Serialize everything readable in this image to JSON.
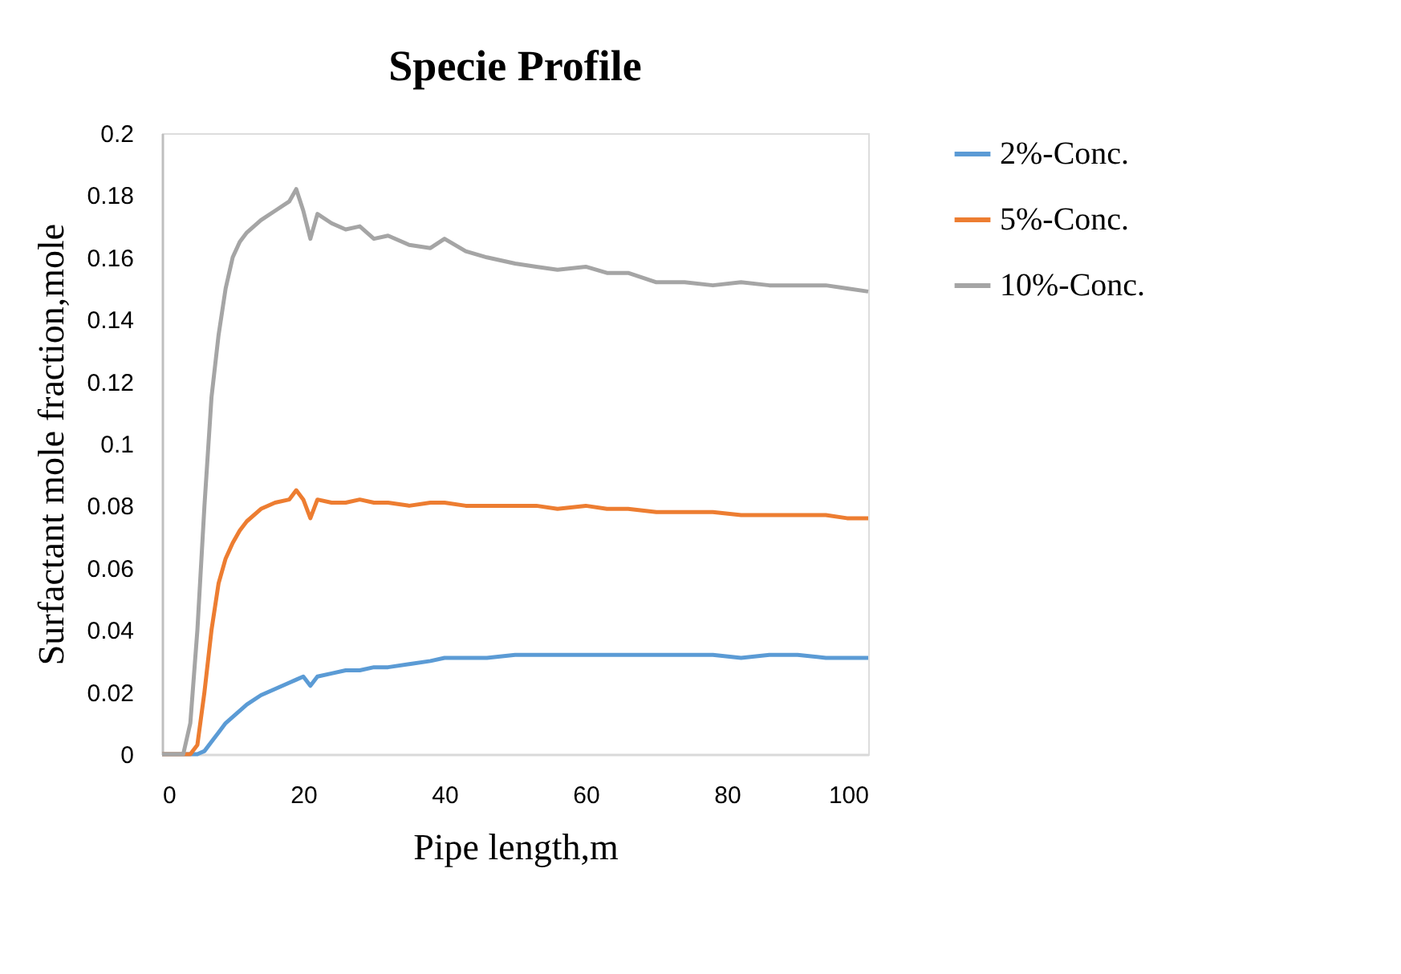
{
  "chart_data": {
    "type": "line",
    "title": "Specie Profile",
    "xlabel": "Pipe length,m",
    "ylabel": "Surfactant mole fraction,mole",
    "x": [
      0,
      2,
      3,
      4,
      5,
      6,
      7,
      8,
      9,
      10,
      11,
      12,
      14,
      16,
      18,
      19,
      20,
      21,
      22,
      24,
      26,
      28,
      30,
      32,
      35,
      38,
      40,
      43,
      46,
      50,
      53,
      56,
      60,
      63,
      66,
      70,
      74,
      78,
      82,
      86,
      90,
      94,
      97,
      100
    ],
    "series": [
      {
        "name": "2%-Conc.",
        "color": "#5b9bd5",
        "values": [
          0,
          0,
          0,
          0,
          0,
          0.001,
          0.004,
          0.007,
          0.01,
          0.012,
          0.014,
          0.016,
          0.019,
          0.021,
          0.023,
          0.024,
          0.025,
          0.022,
          0.025,
          0.026,
          0.027,
          0.027,
          0.028,
          0.028,
          0.029,
          0.03,
          0.031,
          0.031,
          0.031,
          0.032,
          0.032,
          0.032,
          0.032,
          0.032,
          0.032,
          0.032,
          0.032,
          0.032,
          0.031,
          0.032,
          0.032,
          0.031,
          0.031,
          0.031
        ]
      },
      {
        "name": "5%-Conc.",
        "color": "#ed7d31",
        "values": [
          0,
          0,
          0,
          0,
          0.003,
          0.02,
          0.04,
          0.055,
          0.063,
          0.068,
          0.072,
          0.075,
          0.079,
          0.081,
          0.082,
          0.085,
          0.082,
          0.076,
          0.082,
          0.081,
          0.081,
          0.082,
          0.081,
          0.081,
          0.08,
          0.081,
          0.081,
          0.08,
          0.08,
          0.08,
          0.08,
          0.079,
          0.08,
          0.079,
          0.079,
          0.078,
          0.078,
          0.078,
          0.077,
          0.077,
          0.077,
          0.077,
          0.076,
          0.076
        ]
      },
      {
        "name": "10%-Conc.",
        "color": "#a5a5a5",
        "values": [
          0,
          0,
          0,
          0.01,
          0.04,
          0.08,
          0.115,
          0.135,
          0.15,
          0.16,
          0.165,
          0.168,
          0.172,
          0.175,
          0.178,
          0.182,
          0.175,
          0.166,
          0.174,
          0.171,
          0.169,
          0.17,
          0.166,
          0.167,
          0.164,
          0.163,
          0.166,
          0.162,
          0.16,
          0.158,
          0.157,
          0.156,
          0.157,
          0.155,
          0.155,
          0.152,
          0.152,
          0.151,
          0.152,
          0.151,
          0.151,
          0.151,
          0.15,
          0.149
        ]
      }
    ],
    "xlim": [
      0,
      100
    ],
    "xticks": [
      0,
      20,
      40,
      60,
      80,
      100
    ],
    "ylim": [
      0,
      0.2
    ],
    "yticks": [
      0,
      0.02,
      0.04,
      0.06,
      0.08,
      0.1,
      0.12,
      0.14,
      0.16,
      0.18,
      0.2
    ],
    "grid": false,
    "legend": "right",
    "marker": "none",
    "line_style": "solid"
  }
}
